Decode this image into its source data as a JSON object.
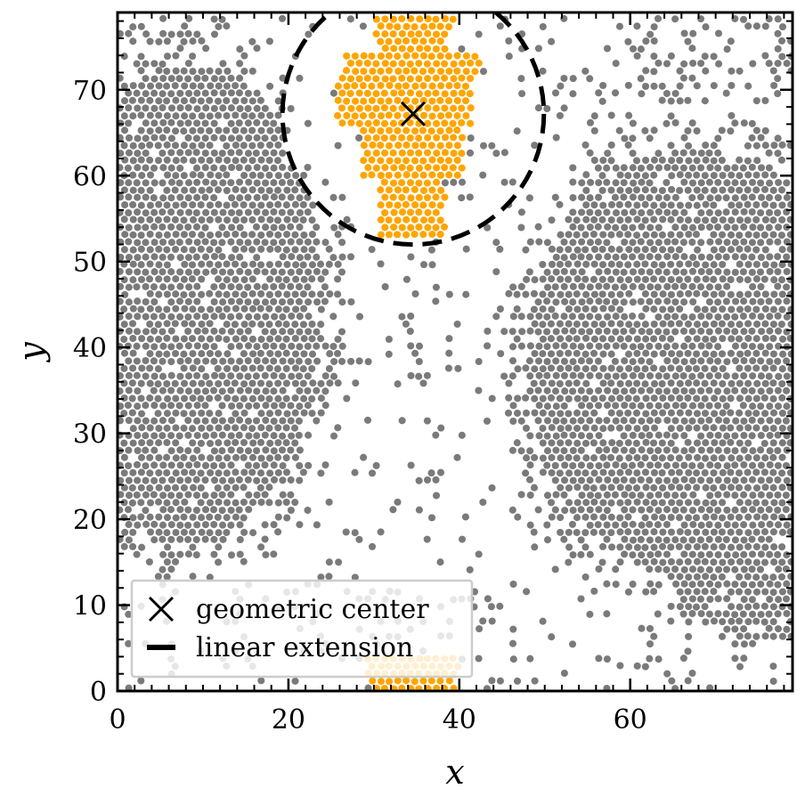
{
  "chart_data": {
    "type": "scatter",
    "title": "",
    "xlabel": "x",
    "ylabel": "y",
    "xlim": [
      0,
      79
    ],
    "ylim": [
      0,
      79
    ],
    "x_ticks": [
      0,
      20,
      40,
      60
    ],
    "x_tick_labels": [
      "0",
      "20",
      "40",
      "60"
    ],
    "y_ticks": [
      0,
      10,
      20,
      30,
      40,
      50,
      60,
      70
    ],
    "y_tick_labels": [
      "0",
      "10",
      "20",
      "30",
      "40",
      "50",
      "60",
      "70"
    ],
    "grid": false,
    "legend": {
      "placement": "lower-left",
      "entries": [
        {
          "label": "geometric center",
          "marker": "x"
        },
        {
          "label": "linear extension",
          "marker": "dash"
        }
      ]
    },
    "colors": {
      "background_particles": "#7a7a7a",
      "cluster": "#ffa500",
      "markers": "#000000"
    },
    "geometric_center": {
      "x": 34.6,
      "y": 67.2
    },
    "linear_extension_circle": {
      "center_x": 34.6,
      "center_y": 67.2,
      "radius": 15.3
    },
    "cluster_description": "orange particles forming a vertical streak around x≈34, wrapping periodically from the top edge to the bottom edge",
    "density_regions": [
      {
        "name": "left-dense-region",
        "center_x": 8,
        "center_y": 45,
        "radius_x": 16,
        "radius_y": 28,
        "density": 0.95
      },
      {
        "name": "right-dense-region",
        "center_x": 68,
        "center_y": 38,
        "radius_x": 20,
        "radius_y": 25,
        "density": 0.95
      },
      {
        "name": "right-lower-region",
        "center_x": 73,
        "center_y": 17,
        "radius_x": 9,
        "radius_y": 10,
        "density": 0.9
      },
      {
        "name": "sparse-gas",
        "density": 0.12
      }
    ]
  }
}
